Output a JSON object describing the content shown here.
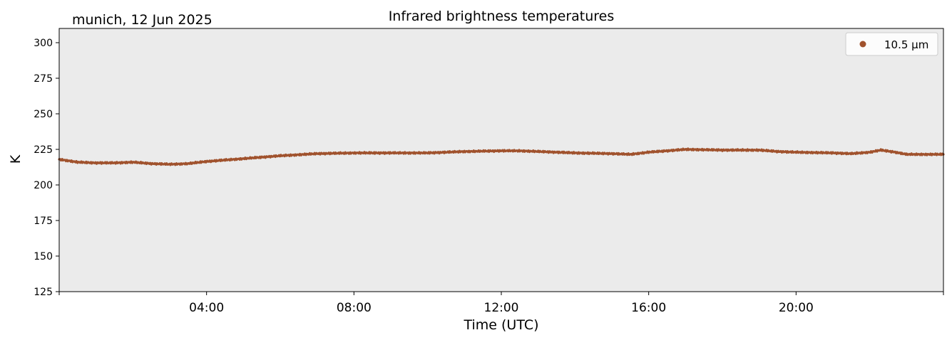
{
  "header": {
    "location_date": "munich, 12 Jun 2025"
  },
  "chart_data": {
    "type": "scatter",
    "title": "Infrared brightness temperatures",
    "xlabel": "Time (UTC)",
    "ylabel": "K",
    "xlim_hours": [
      0,
      24
    ],
    "ylim": [
      125,
      310
    ],
    "x_ticks": [
      {
        "hour": 4,
        "label": "04:00"
      },
      {
        "hour": 8,
        "label": "08:00"
      },
      {
        "hour": 12,
        "label": "12:00"
      },
      {
        "hour": 16,
        "label": "16:00"
      },
      {
        "hour": 20,
        "label": "20:00"
      }
    ],
    "y_ticks": [
      125,
      150,
      175,
      200,
      225,
      250,
      275,
      300
    ],
    "grid": false,
    "background_color": "#ebebeb",
    "legend": {
      "position": "top-right",
      "entries": [
        {
          "label": "10.5 µm",
          "color": "#a0522d"
        }
      ]
    },
    "series": [
      {
        "name": "10.5 µm",
        "color": "#a0522d",
        "points": [
          [
            0.0,
            218.0
          ],
          [
            0.5,
            216.0
          ],
          [
            1.0,
            215.5
          ],
          [
            1.5,
            215.5
          ],
          [
            2.0,
            216.0
          ],
          [
            2.5,
            215.0
          ],
          [
            3.0,
            214.5
          ],
          [
            3.5,
            215.0
          ],
          [
            4.0,
            216.5
          ],
          [
            5.0,
            218.5
          ],
          [
            6.0,
            220.5
          ],
          [
            7.0,
            222.0
          ],
          [
            8.0,
            222.5
          ],
          [
            9.0,
            222.5
          ],
          [
            10.0,
            222.5
          ],
          [
            11.0,
            223.5
          ],
          [
            12.0,
            224.0
          ],
          [
            12.5,
            224.0
          ],
          [
            13.0,
            223.5
          ],
          [
            14.0,
            222.5
          ],
          [
            15.0,
            222.0
          ],
          [
            15.5,
            221.5
          ],
          [
            16.0,
            223.0
          ],
          [
            17.0,
            225.0
          ],
          [
            18.0,
            224.5
          ],
          [
            19.0,
            224.5
          ],
          [
            19.5,
            223.5
          ],
          [
            20.0,
            223.0
          ],
          [
            21.0,
            222.5
          ],
          [
            21.5,
            222.0
          ],
          [
            22.0,
            223.0
          ],
          [
            22.3,
            224.5
          ],
          [
            22.7,
            223.0
          ],
          [
            23.0,
            221.5
          ],
          [
            24.0,
            221.5
          ]
        ]
      }
    ]
  }
}
